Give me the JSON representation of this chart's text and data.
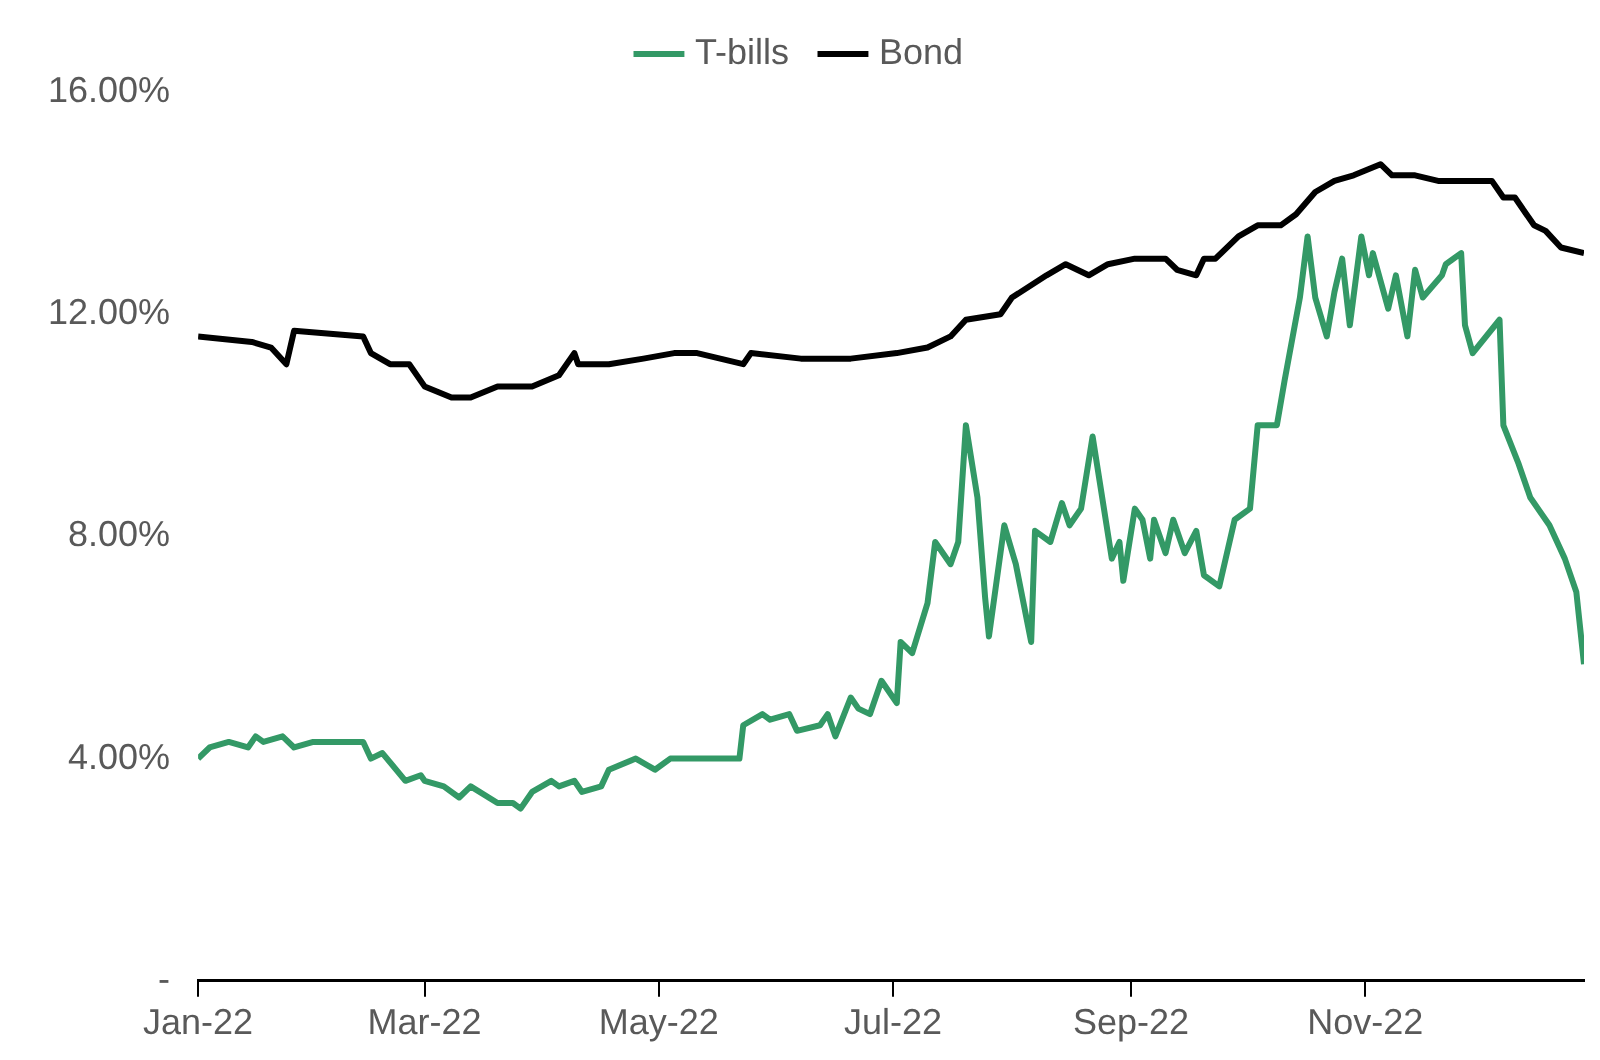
{
  "chart_data": {
    "type": "line",
    "legend": "top",
    "grid": false,
    "marker": "none",
    "line_style": "solid",
    "xlim": [
      "2022-01-01",
      "2022-12-28"
    ],
    "xticks": [
      {
        "value": "2022-01-01",
        "label": "Jan-22"
      },
      {
        "value": "2022-03-01",
        "label": "Mar-22"
      },
      {
        "value": "2022-05-01",
        "label": "May-22"
      },
      {
        "value": "2022-07-01",
        "label": "Jul-22"
      },
      {
        "value": "2022-09-01",
        "label": "Sep-22"
      },
      {
        "value": "2022-11-01",
        "label": "Nov-22"
      }
    ],
    "ylim": [
      0,
      16
    ],
    "yticks": [
      {
        "value": 0,
        "label": "-"
      },
      {
        "value": 4,
        "label": "4.00%"
      },
      {
        "value": 8,
        "label": "8.00%"
      },
      {
        "value": 12,
        "label": "12.00%"
      },
      {
        "value": 16,
        "label": "16.00%"
      }
    ],
    "series": [
      {
        "name": "T-bills",
        "color": "#339966",
        "x": [
          "2022-01-01",
          "2022-01-04",
          "2022-01-09",
          "2022-01-14",
          "2022-01-16",
          "2022-01-18",
          "2022-01-23",
          "2022-01-26",
          "2022-01-31",
          "2022-02-13",
          "2022-02-15",
          "2022-02-18",
          "2022-02-24",
          "2022-02-28",
          "2022-03-01",
          "2022-03-06",
          "2022-03-10",
          "2022-03-13",
          "2022-03-20",
          "2022-03-24",
          "2022-03-26",
          "2022-03-29",
          "2022-04-03",
          "2022-04-05",
          "2022-04-09",
          "2022-04-11",
          "2022-04-16",
          "2022-04-18",
          "2022-04-25",
          "2022-04-30",
          "2022-05-04",
          "2022-05-15",
          "2022-05-22",
          "2022-05-23",
          "2022-05-28",
          "2022-05-30",
          "2022-06-04",
          "2022-06-06",
          "2022-06-12",
          "2022-06-14",
          "2022-06-16",
          "2022-06-20",
          "2022-06-22",
          "2022-06-25",
          "2022-06-28",
          "2022-07-02",
          "2022-07-03",
          "2022-07-06",
          "2022-07-10",
          "2022-07-12",
          "2022-07-16",
          "2022-07-18",
          "2022-07-20",
          "2022-07-23",
          "2022-07-25",
          "2022-07-26",
          "2022-07-30",
          "2022-08-02",
          "2022-08-06",
          "2022-08-07",
          "2022-08-11",
          "2022-08-14",
          "2022-08-16",
          "2022-08-19",
          "2022-08-22",
          "2022-08-27",
          "2022-08-29",
          "2022-08-30",
          "2022-09-02",
          "2022-09-04",
          "2022-09-06",
          "2022-09-07",
          "2022-09-10",
          "2022-09-12",
          "2022-09-15",
          "2022-09-18",
          "2022-09-20",
          "2022-09-24",
          "2022-09-28",
          "2022-10-02",
          "2022-10-04",
          "2022-10-09",
          "2022-10-11",
          "2022-10-15",
          "2022-10-17",
          "2022-10-19",
          "2022-10-22",
          "2022-10-24",
          "2022-10-26",
          "2022-10-28",
          "2022-10-31",
          "2022-11-02",
          "2022-11-03",
          "2022-11-07",
          "2022-11-09",
          "2022-11-12",
          "2022-11-14",
          "2022-11-16",
          "2022-11-21",
          "2022-11-22",
          "2022-11-26",
          "2022-11-27",
          "2022-11-29",
          "2022-12-06",
          "2022-12-07",
          "2022-12-11",
          "2022-12-14",
          "2022-12-19",
          "2022-12-23",
          "2022-12-26",
          "2022-12-28"
        ],
        "values": [
          4.0,
          4.2,
          4.3,
          4.2,
          4.4,
          4.3,
          4.4,
          4.2,
          4.3,
          4.3,
          4.0,
          4.1,
          3.6,
          3.7,
          3.6,
          3.5,
          3.3,
          3.5,
          3.2,
          3.2,
          3.1,
          3.4,
          3.6,
          3.5,
          3.6,
          3.4,
          3.5,
          3.8,
          4.0,
          3.8,
          4.0,
          4.0,
          4.0,
          4.6,
          4.8,
          4.7,
          4.8,
          4.5,
          4.6,
          4.8,
          4.4,
          5.1,
          4.9,
          4.8,
          5.4,
          5.0,
          6.1,
          5.9,
          6.8,
          7.9,
          7.5,
          7.9,
          10.0,
          8.7,
          6.9,
          6.2,
          8.2,
          7.5,
          6.1,
          8.1,
          7.9,
          8.6,
          8.2,
          8.5,
          9.8,
          7.6,
          7.9,
          7.2,
          8.5,
          8.3,
          7.6,
          8.3,
          7.7,
          8.3,
          7.7,
          8.1,
          7.3,
          7.1,
          8.3,
          8.5,
          10.0,
          10.0,
          10.8,
          12.3,
          13.4,
          12.3,
          11.6,
          12.4,
          13.0,
          11.8,
          13.4,
          12.7,
          13.1,
          12.1,
          12.7,
          11.6,
          12.8,
          12.3,
          12.7,
          12.9,
          13.1,
          11.8,
          11.3,
          11.9,
          10.0,
          9.3,
          8.7,
          8.2,
          7.6,
          7.0,
          5.7
        ]
      },
      {
        "name": "Bond",
        "color": "#000000",
        "x": [
          "2022-01-01",
          "2022-01-15",
          "2022-01-20",
          "2022-01-24",
          "2022-01-26",
          "2022-02-13",
          "2022-02-15",
          "2022-02-20",
          "2022-02-25",
          "2022-03-01",
          "2022-03-08",
          "2022-03-13",
          "2022-03-20",
          "2022-03-29",
          "2022-04-05",
          "2022-04-09",
          "2022-04-10",
          "2022-04-18",
          "2022-04-27",
          "2022-05-05",
          "2022-05-11",
          "2022-05-23",
          "2022-05-25",
          "2022-06-07",
          "2022-06-20",
          "2022-07-02",
          "2022-07-10",
          "2022-07-16",
          "2022-07-20",
          "2022-07-29",
          "2022-08-01",
          "2022-08-10",
          "2022-08-15",
          "2022-08-21",
          "2022-08-26",
          "2022-09-02",
          "2022-09-10",
          "2022-09-13",
          "2022-09-18",
          "2022-09-20",
          "2022-09-23",
          "2022-09-29",
          "2022-10-04",
          "2022-10-10",
          "2022-10-14",
          "2022-10-19",
          "2022-10-24",
          "2022-10-29",
          "2022-11-05",
          "2022-11-08",
          "2022-11-14",
          "2022-11-20",
          "2022-11-27",
          "2022-12-04",
          "2022-12-07",
          "2022-12-10",
          "2022-12-15",
          "2022-12-18",
          "2022-12-22",
          "2022-12-28"
        ],
        "values": [
          11.6,
          11.5,
          11.4,
          11.1,
          11.7,
          11.6,
          11.3,
          11.1,
          11.1,
          10.7,
          10.5,
          10.5,
          10.7,
          10.7,
          10.9,
          11.3,
          11.1,
          11.1,
          11.2,
          11.3,
          11.3,
          11.1,
          11.3,
          11.2,
          11.2,
          11.3,
          11.4,
          11.6,
          11.9,
          12.0,
          12.3,
          12.7,
          12.9,
          12.7,
          12.9,
          13.0,
          13.0,
          12.8,
          12.7,
          13.0,
          13.0,
          13.4,
          13.6,
          13.6,
          13.8,
          14.2,
          14.4,
          14.5,
          14.7,
          14.5,
          14.5,
          14.4,
          14.4,
          14.4,
          14.1,
          14.1,
          13.6,
          13.5,
          13.2,
          13.1
        ]
      }
    ]
  }
}
